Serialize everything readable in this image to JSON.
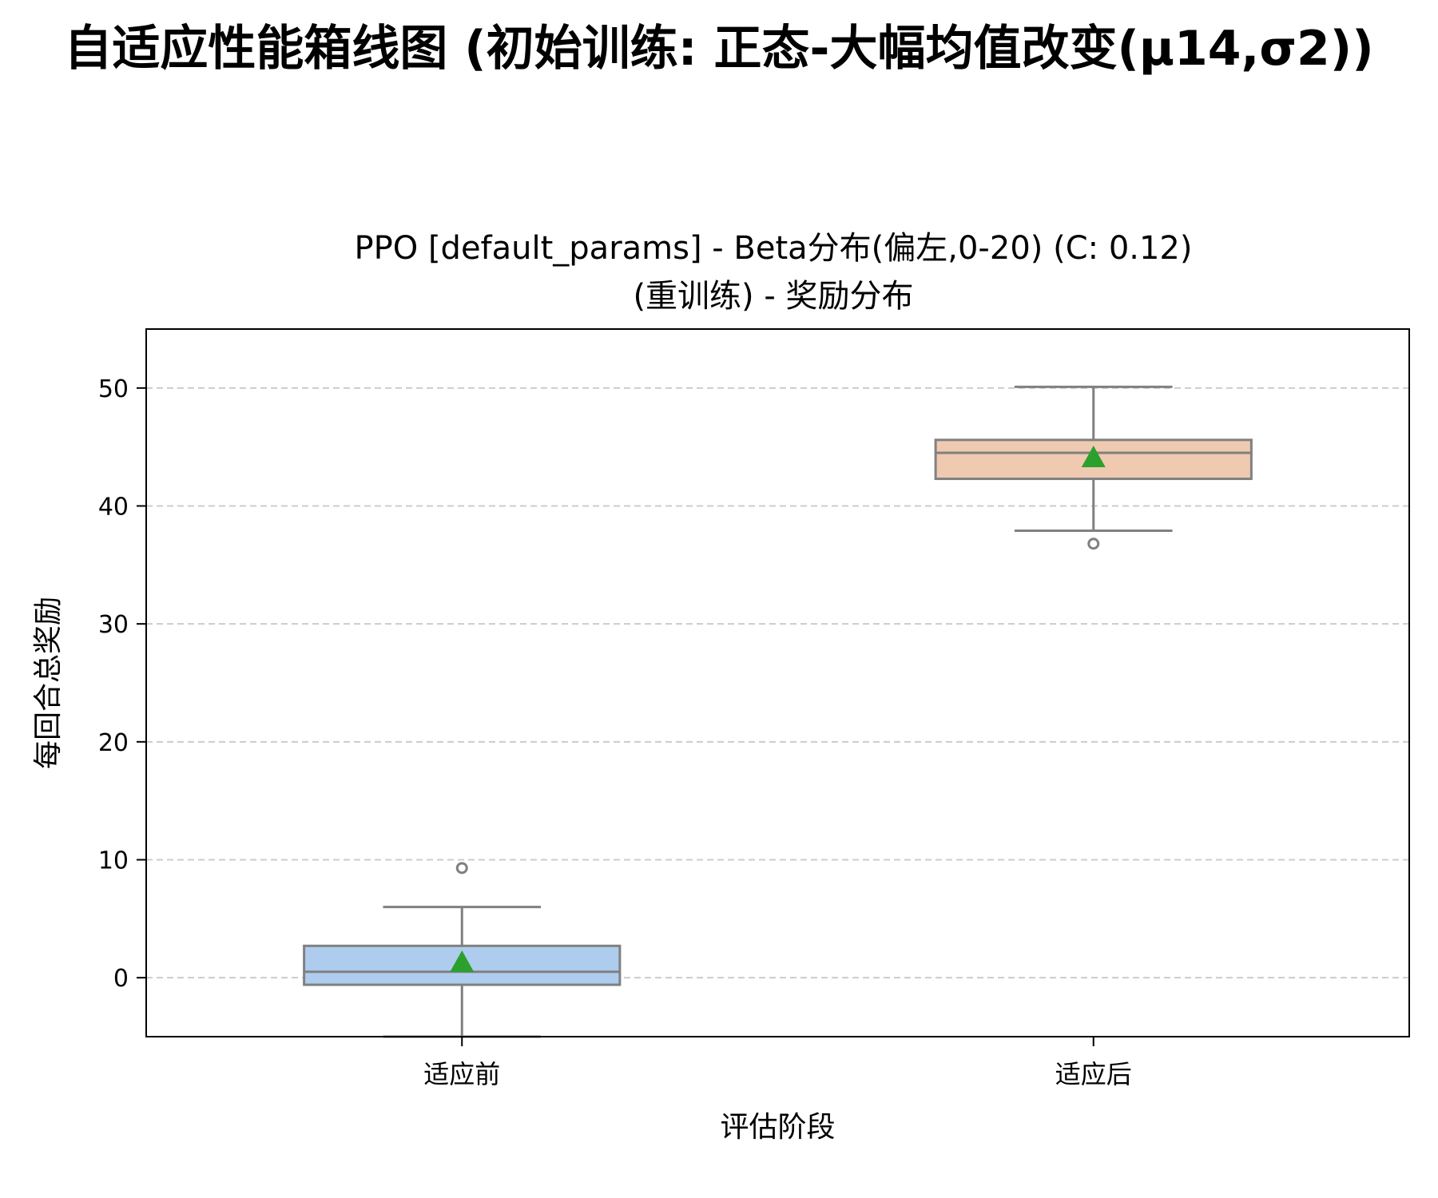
{
  "figure": {
    "title": "自适应性能箱线图 (初始训练: 正态-大幅均值改变(μ14,σ2))"
  },
  "chart_data": {
    "type": "box",
    "title_lines": [
      "PPO [default_params] - Beta分布(偏左,0-20) (C: 0.12)",
      "(重训练) - 奖励分布"
    ],
    "xlabel": "评估阶段",
    "ylabel": "每回合总奖励",
    "categories": [
      "适应前",
      "适应后"
    ],
    "ylim": [
      -5,
      55
    ],
    "yticks": [
      0,
      10,
      20,
      30,
      40,
      50
    ],
    "grid": {
      "y": true,
      "style": "dashed"
    },
    "boxes": [
      {
        "category": "适应前",
        "q1": -0.6,
        "median": 0.5,
        "q3": 2.7,
        "whisker_low": -5,
        "whisker_high": 6,
        "mean": 1.3,
        "outliers": [
          9.3
        ],
        "color": "#aecdee"
      },
      {
        "category": "适应后",
        "q1": 42.3,
        "median": 44.5,
        "q3": 45.6,
        "whisker_low": 37.9,
        "whisker_high": 50.1,
        "mean": 44.1,
        "outliers": [
          36.8
        ],
        "color": "#efc9b0"
      }
    ],
    "line_color": "#808080",
    "mean_marker_color": "#2ca02c"
  }
}
